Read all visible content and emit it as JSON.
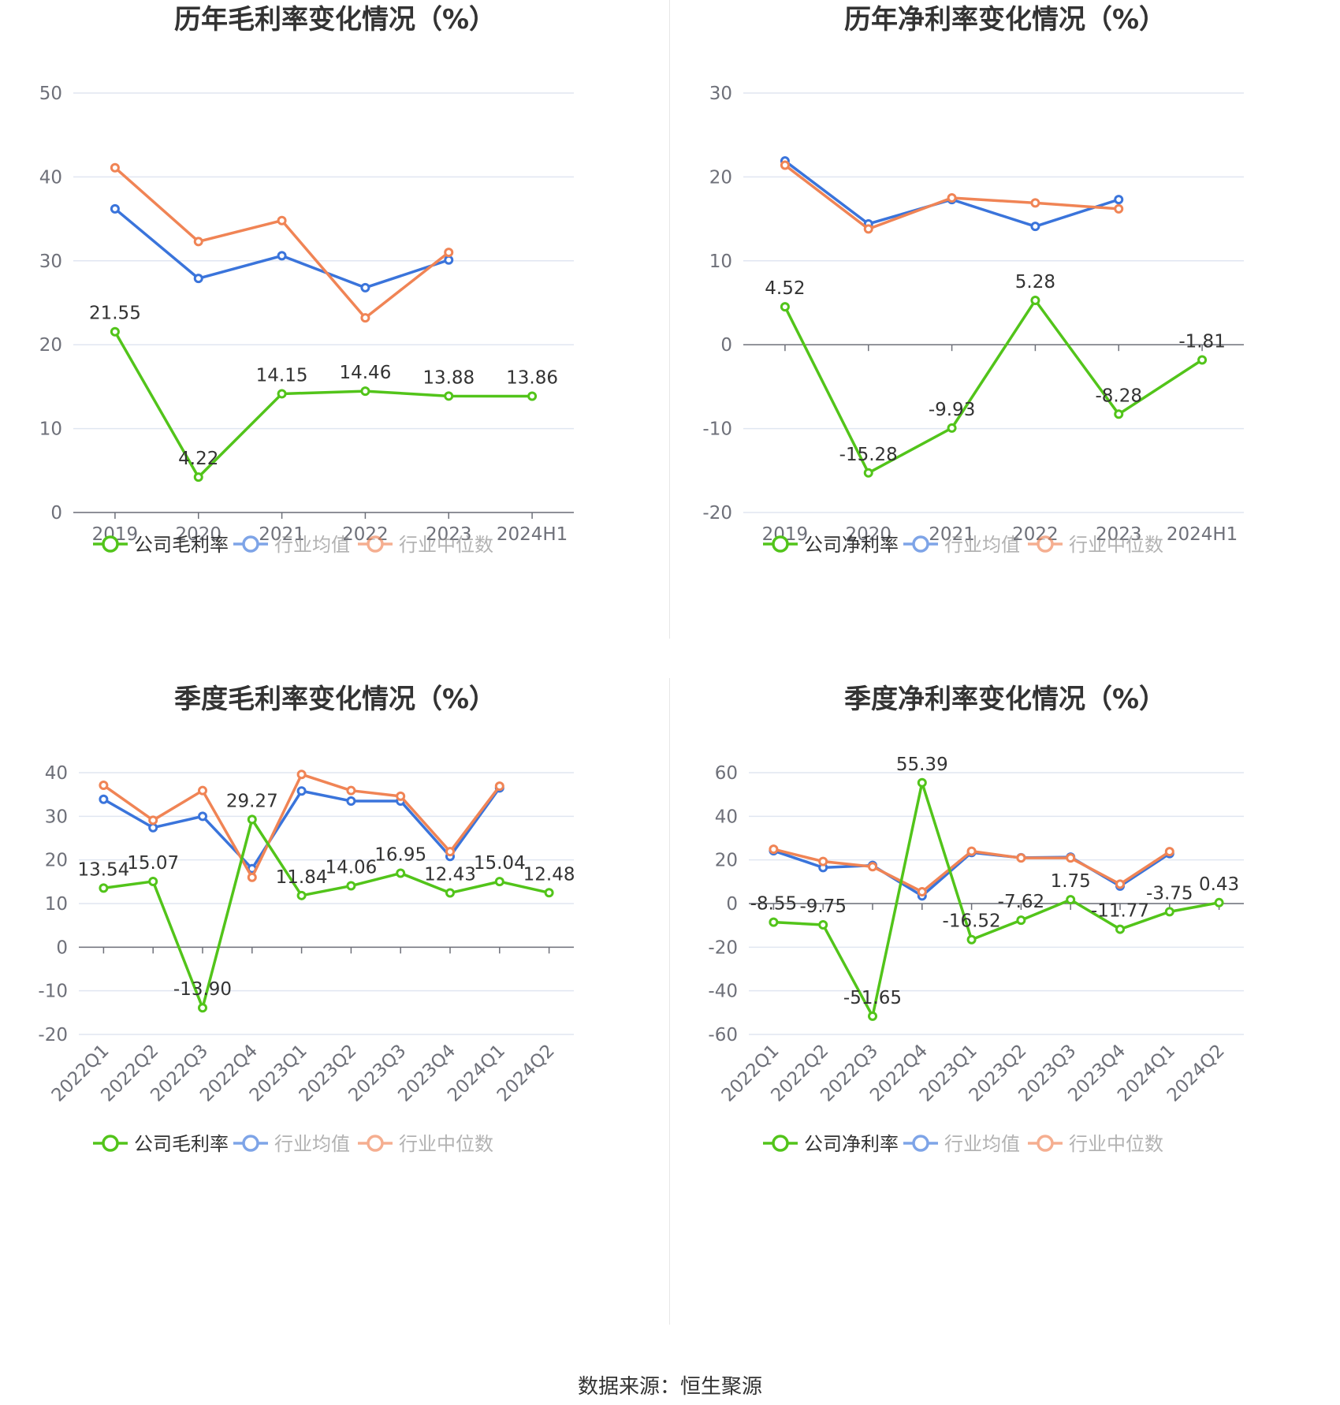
{
  "source": "数据来源：恒生聚源",
  "colors": {
    "company": "#52c41a",
    "avg": "#3a74db",
    "median": "#f08455"
  },
  "chart_data": [
    {
      "type": "line",
      "title": "历年毛利率变化情况（%）",
      "categories": [
        "2019",
        "2020",
        "2021",
        "2022",
        "2023",
        "2024H1"
      ],
      "ylim": [
        0,
        50
      ],
      "yticks": [
        0,
        10,
        20,
        30,
        40,
        50
      ],
      "rotate_x": false,
      "legend": "bottom",
      "series": [
        {
          "name": "公司毛利率",
          "key": "company",
          "labels": true,
          "values": [
            21.55,
            4.22,
            14.15,
            14.46,
            13.88,
            13.86
          ]
        },
        {
          "name": "行业均值",
          "key": "avg",
          "labels": false,
          "values": [
            36.2,
            27.9,
            30.6,
            26.8,
            30.1,
            null
          ]
        },
        {
          "name": "行业中位数",
          "key": "median",
          "labels": false,
          "values": [
            41.1,
            32.3,
            34.8,
            23.2,
            31.0,
            null
          ]
        }
      ]
    },
    {
      "type": "line",
      "title": "历年净利率变化情况（%）",
      "categories": [
        "2019",
        "2020",
        "2021",
        "2022",
        "2023",
        "2024H1"
      ],
      "ylim": [
        -20,
        30
      ],
      "yticks": [
        -20,
        -10,
        0,
        10,
        20,
        30
      ],
      "rotate_x": false,
      "legend": "bottom",
      "series": [
        {
          "name": "公司净利率",
          "key": "company",
          "labels": true,
          "values": [
            4.52,
            -15.28,
            -9.93,
            5.28,
            -8.28,
            -1.81
          ]
        },
        {
          "name": "行业均值",
          "key": "avg",
          "labels": false,
          "values": [
            21.9,
            14.4,
            17.3,
            14.1,
            17.3,
            null
          ]
        },
        {
          "name": "行业中位数",
          "key": "median",
          "labels": false,
          "values": [
            21.4,
            13.8,
            17.5,
            16.9,
            16.2,
            null
          ]
        }
      ]
    },
    {
      "type": "line",
      "title": "季度毛利率变化情况（%）",
      "categories": [
        "2022Q1",
        "2022Q2",
        "2022Q3",
        "2022Q4",
        "2023Q1",
        "2023Q2",
        "2023Q3",
        "2023Q4",
        "2024Q1",
        "2024Q2"
      ],
      "ylim": [
        -20,
        40
      ],
      "yticks": [
        -20,
        -10,
        0,
        10,
        20,
        30,
        40
      ],
      "rotate_x": true,
      "legend": "bottom",
      "series": [
        {
          "name": "公司毛利率",
          "key": "company",
          "labels": true,
          "values": [
            13.54,
            15.07,
            -13.9,
            29.27,
            11.84,
            14.06,
            16.95,
            12.43,
            15.04,
            12.48
          ]
        },
        {
          "name": "行业均值",
          "key": "avg",
          "labels": false,
          "values": [
            33.9,
            27.4,
            30.0,
            18.0,
            35.8,
            33.5,
            33.5,
            20.8,
            36.5,
            null
          ]
        },
        {
          "name": "行业中位数",
          "key": "median",
          "labels": false,
          "values": [
            37.1,
            29.1,
            35.9,
            16.0,
            39.6,
            35.9,
            34.6,
            21.9,
            36.9,
            null
          ]
        }
      ]
    },
    {
      "type": "line",
      "title": "季度净利率变化情况（%）",
      "categories": [
        "2022Q1",
        "2022Q2",
        "2022Q3",
        "2022Q4",
        "2023Q1",
        "2023Q2",
        "2023Q3",
        "2023Q4",
        "2024Q1",
        "2024Q2"
      ],
      "ylim": [
        -60,
        60
      ],
      "yticks": [
        -60,
        -40,
        -20,
        0,
        20,
        40,
        60
      ],
      "rotate_x": true,
      "legend": "bottom",
      "series": [
        {
          "name": "公司净利率",
          "key": "company",
          "labels": true,
          "values": [
            -8.55,
            -9.75,
            -51.65,
            55.39,
            -16.52,
            -7.62,
            1.75,
            -11.77,
            -3.75,
            0.43
          ]
        },
        {
          "name": "行业均值",
          "key": "avg",
          "labels": false,
          "values": [
            24.2,
            16.5,
            17.5,
            3.5,
            23.4,
            21.0,
            21.3,
            8.0,
            22.9,
            null
          ]
        },
        {
          "name": "行业中位数",
          "key": "median",
          "labels": false,
          "values": [
            24.9,
            19.3,
            16.9,
            5.4,
            24.0,
            20.9,
            20.9,
            8.9,
            23.8,
            null
          ]
        }
      ]
    }
  ]
}
